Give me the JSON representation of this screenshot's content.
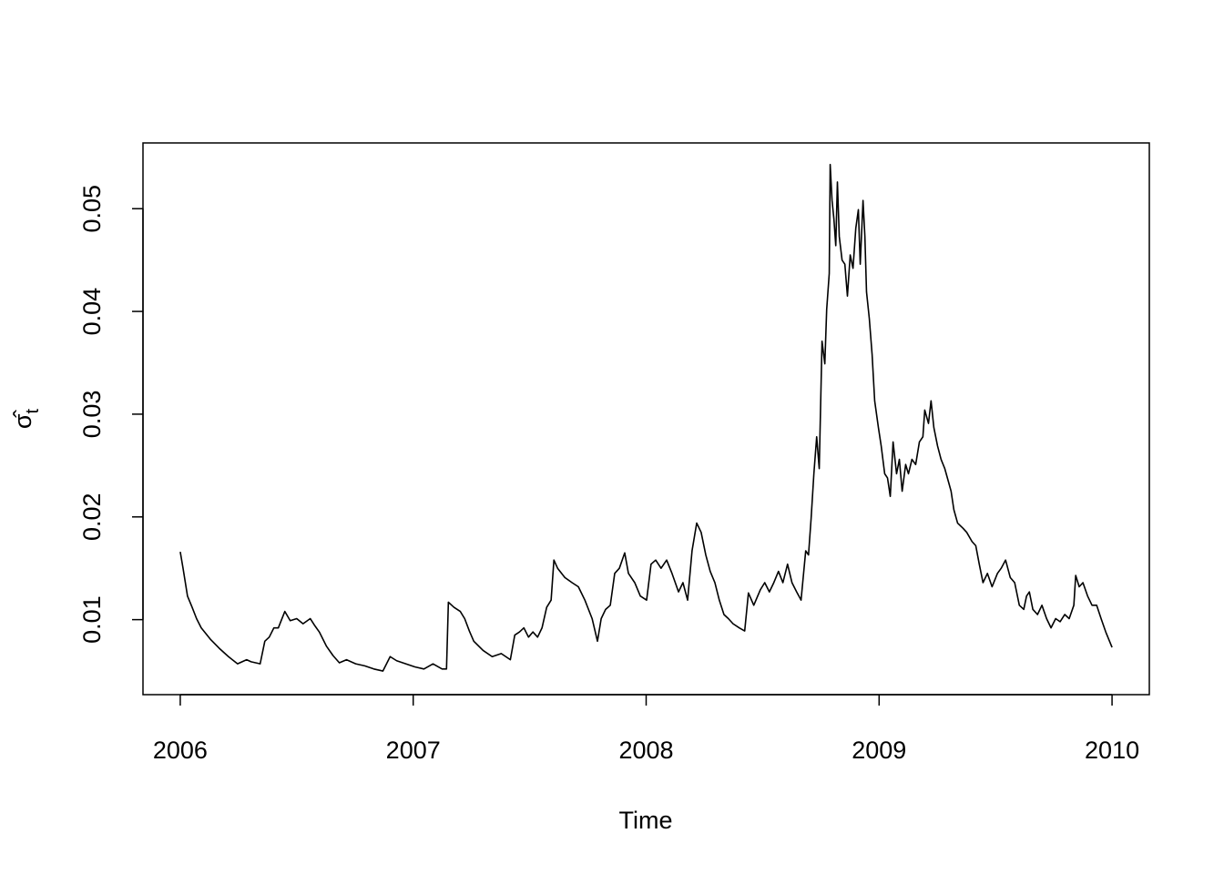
{
  "chart_data": {
    "type": "line",
    "xlabel": "Time",
    "ylabel": "σ̂",
    "ylabel_subscript": "t",
    "color": "#000000",
    "xlim": [
      2005.84,
      2010.16
    ],
    "xticks": [
      2006,
      2007,
      2008,
      2009,
      2010
    ],
    "ylim": [
      0.0027,
      0.0564
    ],
    "yticks": [
      0.01,
      0.02,
      0.03,
      0.04,
      0.05
    ],
    "x": [
      2006.0,
      2006.012,
      2006.031,
      2006.051,
      2006.07,
      2006.09,
      2006.129,
      2006.168,
      2006.207,
      2006.246,
      2006.285,
      2006.304,
      2006.343,
      2006.363,
      2006.382,
      2006.402,
      2006.421,
      2006.449,
      2006.472,
      2006.5,
      2006.527,
      2006.558,
      2006.578,
      2006.597,
      2006.628,
      2006.656,
      2006.683,
      2006.714,
      2006.753,
      2006.792,
      2006.831,
      2006.87,
      2006.901,
      2006.929,
      2006.968,
      2007.007,
      2007.046,
      2007.085,
      2007.124,
      2007.143,
      2007.151,
      2007.175,
      2007.202,
      2007.221,
      2007.241,
      2007.26,
      2007.3,
      2007.339,
      2007.378,
      2007.417,
      2007.436,
      2007.456,
      2007.475,
      2007.495,
      2007.514,
      2007.534,
      2007.553,
      2007.573,
      2007.592,
      2007.604,
      2007.62,
      2007.651,
      2007.682,
      2007.709,
      2007.737,
      2007.768,
      2007.791,
      2007.807,
      2007.826,
      2007.846,
      2007.865,
      2007.885,
      2007.908,
      2007.924,
      2007.951,
      2007.975,
      2008.002,
      2008.021,
      2008.041,
      2008.064,
      2008.088,
      2008.111,
      2008.139,
      2008.158,
      2008.178,
      2008.197,
      2008.217,
      2008.236,
      2008.256,
      2008.275,
      2008.295,
      2008.314,
      2008.334,
      2008.353,
      2008.373,
      2008.4,
      2008.423,
      2008.439,
      2008.462,
      2008.49,
      2008.509,
      2008.529,
      2008.548,
      2008.568,
      2008.587,
      2008.607,
      2008.626,
      2008.646,
      2008.665,
      2008.685,
      2008.697,
      2008.708,
      2008.72,
      2008.732,
      2008.743,
      2008.755,
      2008.767,
      2008.775,
      2008.786,
      2008.79,
      2008.798,
      2008.806,
      2008.814,
      2008.821,
      2008.829,
      2008.841,
      2008.853,
      2008.864,
      2008.876,
      2008.888,
      2008.9,
      2008.911,
      2008.919,
      2008.931,
      2008.939,
      2008.946,
      2008.958,
      2008.97,
      2008.981,
      2008.997,
      2009.009,
      2009.024,
      2009.036,
      2009.048,
      2009.06,
      2009.075,
      2009.087,
      2009.099,
      2009.114,
      2009.126,
      2009.141,
      2009.157,
      2009.173,
      2009.188,
      2009.196,
      2009.212,
      2009.223,
      2009.235,
      2009.251,
      2009.266,
      2009.282,
      2009.298,
      2009.309,
      2009.321,
      2009.337,
      2009.36,
      2009.376,
      2009.399,
      2009.415,
      2009.43,
      2009.446,
      2009.465,
      2009.485,
      2009.508,
      2009.524,
      2009.543,
      2009.563,
      2009.582,
      2009.602,
      2009.621,
      2009.633,
      2009.645,
      2009.66,
      2009.68,
      2009.699,
      2009.719,
      2009.738,
      2009.758,
      2009.777,
      2009.797,
      2009.816,
      2009.836,
      2009.844,
      2009.859,
      2009.875,
      2009.895,
      2009.914,
      2009.934,
      2009.953,
      2009.973,
      2010.0
    ],
    "values": [
      0.0166,
      0.015,
      0.0123,
      0.0112,
      0.0101,
      0.0092,
      0.0081,
      0.0072,
      0.0064,
      0.0057,
      0.0061,
      0.0059,
      0.0057,
      0.0079,
      0.0083,
      0.0092,
      0.0092,
      0.0108,
      0.0099,
      0.0101,
      0.0096,
      0.0101,
      0.0094,
      0.0088,
      0.0074,
      0.0065,
      0.0058,
      0.0061,
      0.0057,
      0.0055,
      0.0052,
      0.005,
      0.0064,
      0.006,
      0.0057,
      0.0054,
      0.0052,
      0.0057,
      0.0052,
      0.0052,
      0.0117,
      0.0112,
      0.0108,
      0.0101,
      0.0089,
      0.0079,
      0.007,
      0.0064,
      0.0067,
      0.0061,
      0.0085,
      0.0088,
      0.0092,
      0.0083,
      0.0088,
      0.0083,
      0.0092,
      0.0112,
      0.0119,
      0.0158,
      0.015,
      0.0141,
      0.0136,
      0.0132,
      0.0119,
      0.0101,
      0.0079,
      0.0101,
      0.011,
      0.0114,
      0.0145,
      0.015,
      0.0165,
      0.0145,
      0.0136,
      0.0123,
      0.0119,
      0.0154,
      0.0158,
      0.015,
      0.0158,
      0.0145,
      0.0127,
      0.0136,
      0.0119,
      0.0167,
      0.0194,
      0.0185,
      0.0163,
      0.0147,
      0.0136,
      0.0119,
      0.0105,
      0.0101,
      0.0096,
      0.0092,
      0.0089,
      0.0126,
      0.0114,
      0.0129,
      0.0136,
      0.0127,
      0.0136,
      0.0147,
      0.0136,
      0.0154,
      0.0136,
      0.0127,
      0.0119,
      0.0167,
      0.0163,
      0.0198,
      0.0242,
      0.0278,
      0.0247,
      0.0371,
      0.0349,
      0.0402,
      0.0437,
      0.0543,
      0.0508,
      0.049,
      0.0464,
      0.0526,
      0.0473,
      0.045,
      0.0446,
      0.0415,
      0.0455,
      0.0442,
      0.0481,
      0.0499,
      0.0446,
      0.0508,
      0.0473,
      0.0419,
      0.0393,
      0.0358,
      0.0313,
      0.0287,
      0.0269,
      0.0242,
      0.0238,
      0.022,
      0.0273,
      0.0242,
      0.0256,
      0.0225,
      0.0251,
      0.0242,
      0.0256,
      0.0251,
      0.0273,
      0.0278,
      0.0304,
      0.0291,
      0.0313,
      0.0287,
      0.0269,
      0.0256,
      0.0247,
      0.0234,
      0.0225,
      0.0207,
      0.0194,
      0.0189,
      0.0185,
      0.0176,
      0.0172,
      0.0154,
      0.0136,
      0.0145,
      0.0132,
      0.0145,
      0.015,
      0.0158,
      0.0141,
      0.0136,
      0.0114,
      0.011,
      0.0123,
      0.0127,
      0.011,
      0.0105,
      0.0114,
      0.0101,
      0.0092,
      0.0101,
      0.0098,
      0.0105,
      0.0101,
      0.0114,
      0.0143,
      0.0132,
      0.0136,
      0.0123,
      0.0114,
      0.0114,
      0.0101,
      0.0088,
      0.0073
    ]
  }
}
